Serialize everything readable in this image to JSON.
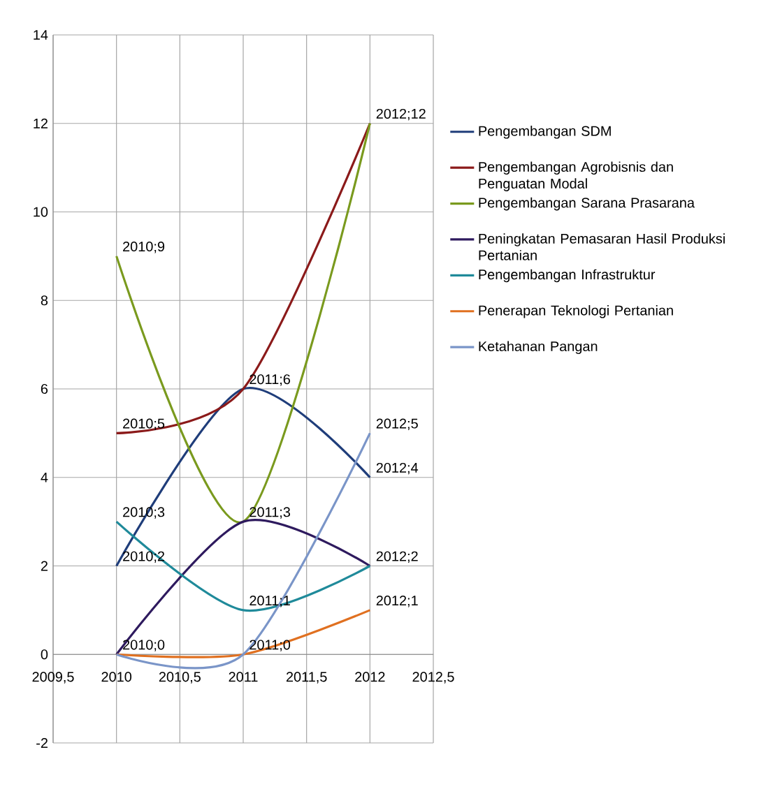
{
  "chart_data": {
    "type": "line",
    "x": [
      2010,
      2011,
      2012
    ],
    "series": [
      {
        "name": "Pengembangan SDM",
        "color": "#1f3d7a",
        "values": [
          2,
          6,
          4
        ]
      },
      {
        "name": "Pengembangan Agrobisnis dan Penguatan Modal",
        "color": "#8b1a1a",
        "values": [
          5,
          6,
          12
        ]
      },
      {
        "name": "Pengembangan Sarana Prasarana",
        "color": "#7a9a1e",
        "values": [
          9,
          3,
          12
        ]
      },
      {
        "name": "Peningkatan Pemasaran Hasil Produksi Pertanian",
        "color": "#2e1a5e",
        "values": [
          0,
          3,
          2
        ]
      },
      {
        "name": "Pengembangan Infrastruktur",
        "color": "#1f8a9a",
        "values": [
          3,
          1,
          2
        ]
      },
      {
        "name": "Penerapan Teknologi Pertanian",
        "color": "#e07020",
        "values": [
          0,
          0,
          1
        ]
      },
      {
        "name": "Ketahanan Pangan",
        "color": "#7a95c8",
        "values": [
          0,
          0,
          5
        ]
      }
    ],
    "xlim": [
      2009.5,
      2012.5
    ],
    "xticks": [
      {
        "value": 2009.5,
        "label": "2009,5"
      },
      2010,
      {
        "value": 2010.5,
        "label": "2010,5"
      },
      2011,
      {
        "value": 2011.5,
        "label": "2011,5"
      },
      2012,
      {
        "value": 2012.5,
        "label": "2012,5"
      }
    ],
    "ylim": [
      -2,
      14
    ],
    "yticks": [
      -2,
      0,
      2,
      4,
      6,
      8,
      10,
      12,
      14
    ],
    "grid": true,
    "legend": "right",
    "marker": "none",
    "line_style": "solid",
    "annotations": [
      {
        "text": "2010;9",
        "x": 2010,
        "y": 9
      },
      {
        "text": "2010;5",
        "x": 2010,
        "y": 5
      },
      {
        "text": "2010;3",
        "x": 2010,
        "y": 3
      },
      {
        "text": "2010;2",
        "x": 2010,
        "y": 2
      },
      {
        "text": "2010;0",
        "x": 2010,
        "y": 0
      },
      {
        "text": "2011;6",
        "x": 2011,
        "y": 6
      },
      {
        "text": "2011;3",
        "x": 2011,
        "y": 3
      },
      {
        "text": "2011;1",
        "x": 2011,
        "y": 1
      },
      {
        "text": "2011;0",
        "x": 2011,
        "y": 0
      },
      {
        "text": "2012;12",
        "x": 2012,
        "y": 12
      },
      {
        "text": "2012;5",
        "x": 2012,
        "y": 5
      },
      {
        "text": "2012;4",
        "x": 2012,
        "y": 4
      },
      {
        "text": "2012;2",
        "x": 2012,
        "y": 2
      },
      {
        "text": "2012;1",
        "x": 2012,
        "y": 1
      }
    ]
  }
}
